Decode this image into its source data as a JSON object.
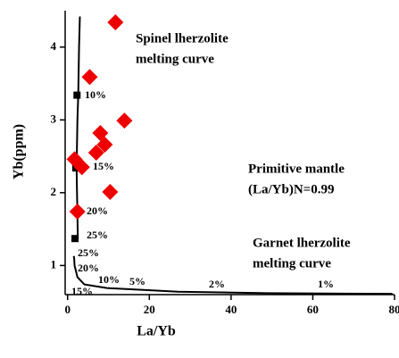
{
  "chart_data": {
    "type": "scatter",
    "x_label": "La/Yb",
    "y_label": "Yb(ppm)",
    "xlim": [
      -0.6,
      80
    ],
    "ylim": [
      0.6,
      4.5
    ],
    "xticks": [
      0,
      20,
      40,
      60,
      80
    ],
    "yticks": [
      1,
      2,
      3,
      4
    ],
    "series": [
      {
        "marker": "line",
        "color": "#000000",
        "x": [
          2.5,
          2.3,
          2.2,
          2.4,
          2.6,
          2.8,
          3.0
        ],
        "values": [
          1.37,
          2.0,
          2.34,
          3.0,
          3.34,
          4.0,
          4.42
        ]
      },
      {
        "marker": "line",
        "color": "#000000",
        "x": [
          1.5,
          1.6,
          1.7,
          2.4,
          4.1,
          9.6,
          27,
          48.7,
          79.5
        ],
        "values": [
          1.13,
          1.1,
          1.0,
          0.84,
          0.74,
          0.69,
          0.64,
          0.62,
          0.61
        ]
      },
      {
        "marker": "square",
        "color": "#000000",
        "x": [
          2.3,
          2.0,
          1.8
        ],
        "values": [
          3.34,
          2.34,
          1.37
        ]
      },
      {
        "marker": "diamond",
        "color": "#ee0000",
        "x": [
          11.7,
          5.4,
          13.9,
          8.0,
          9.1,
          7.0,
          1.7,
          3.5,
          10.4,
          2.4
        ],
        "values": [
          4.34,
          3.59,
          2.99,
          2.82,
          2.66,
          2.55,
          2.46,
          2.35,
          2.01,
          1.74
        ]
      }
    ],
    "annotations": [
      "Spinel lherzolite",
      "melting curve",
      "10%",
      "15%",
      "20%",
      "25%",
      "Primitive mantle",
      "(La/Yb)N=0.99",
      "Garnet lherzolite",
      "melting curve",
      "25%",
      "20%",
      "15%",
      "10%",
      "5%",
      "2%",
      "1%"
    ]
  }
}
